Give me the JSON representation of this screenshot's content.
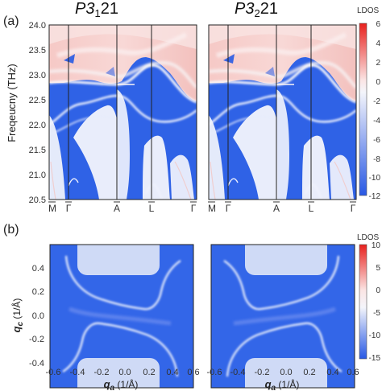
{
  "panel_a": {
    "label": "(a)",
    "titles": [
      {
        "main": "P3",
        "sub": "1",
        "tail": "21"
      },
      {
        "main": "P3",
        "sub": "2",
        "tail": "21"
      }
    ],
    "ylabel": "Freqeucny (THz)",
    "ytick_labels": [
      "24.0",
      "23.5",
      "23.0",
      "22.5",
      "22.0",
      "21.5",
      "21.0",
      "20.5"
    ],
    "kpoints": [
      "M",
      "Γ",
      "A",
      "L",
      "Γ"
    ],
    "colorbar": {
      "title": "LDOS",
      "ticks": [
        "6",
        "4",
        "2",
        "0",
        "-2",
        "-4",
        "-6",
        "-8",
        "-10",
        "-12"
      ]
    }
  },
  "panel_b": {
    "label": "(b)",
    "xlabel_sym": "q",
    "xlabel_sub": "a",
    "xlabel_unit": " (1/Å)",
    "ylabel_sym": "q",
    "ylabel_sub": "c",
    "ylabel_unit": " (1/Å)",
    "xtick_labels": [
      "-0.6",
      "-0.4",
      "-0.2",
      "0.0",
      "0.2",
      "0.4",
      "0.6"
    ],
    "ytick_labels": [
      "0.4",
      "0.2",
      "0.0",
      "-0.2",
      "-0.4"
    ],
    "colorbar": {
      "title": "LDOS",
      "ticks": [
        "10",
        "5",
        "0",
        "-5",
        "-10",
        "-15"
      ]
    }
  },
  "colors": {
    "deep_blue": "#2f62e6",
    "white": "#eef1fb",
    "red": "#e8201d",
    "line": "#222222"
  },
  "chart_data": [
    {
      "type": "heatmap",
      "title": "P3121",
      "ylabel": "Freqeucny (THz)",
      "ylim": [
        20.5,
        24.0
      ],
      "x_ticks": [
        "M",
        "Γ",
        "A",
        "L",
        "Γ"
      ],
      "colorbar_label": "LDOS",
      "colorbar_range": [
        -12,
        6
      ],
      "colorbar_ticks": [
        6,
        4,
        2,
        0,
        -2,
        -4,
        -6,
        -8,
        -10,
        -12
      ]
    },
    {
      "type": "heatmap",
      "title": "P3221",
      "ylabel": "Freqeucny (THz)",
      "ylim": [
        20.5,
        24.0
      ],
      "x_ticks": [
        "M",
        "Γ",
        "A",
        "L",
        "Γ"
      ],
      "colorbar_label": "LDOS",
      "colorbar_range": [
        -12,
        6
      ],
      "colorbar_ticks": [
        6,
        4,
        2,
        0,
        -2,
        -4,
        -6,
        -8,
        -10,
        -12
      ]
    },
    {
      "type": "heatmap",
      "xlabel": "qa (1/Å)",
      "ylabel": "qc (1/Å)",
      "xlim": [
        -0.6,
        0.6
      ],
      "ylim": [
        -0.6,
        0.6
      ],
      "x_ticks": [
        -0.6,
        -0.4,
        -0.2,
        0.0,
        0.2,
        0.4,
        0.6
      ],
      "y_ticks": [
        0.4,
        0.2,
        0.0,
        -0.2,
        -0.4
      ],
      "colorbar_label": "LDOS",
      "colorbar_range": [
        -15,
        10
      ],
      "colorbar_ticks": [
        10,
        5,
        0,
        -5,
        -10,
        -15
      ]
    },
    {
      "type": "heatmap",
      "xlabel": "qa (1/Å)",
      "ylabel": "qc (1/Å)",
      "xlim": [
        -0.6,
        0.6
      ],
      "ylim": [
        -0.6,
        0.6
      ],
      "x_ticks": [
        -0.6,
        -0.4,
        -0.2,
        0.0,
        0.2,
        0.4,
        0.6
      ],
      "colorbar_label": "LDOS",
      "colorbar_range": [
        -15,
        10
      ],
      "colorbar_ticks": [
        10,
        5,
        0,
        -5,
        -10,
        -15
      ]
    }
  ]
}
